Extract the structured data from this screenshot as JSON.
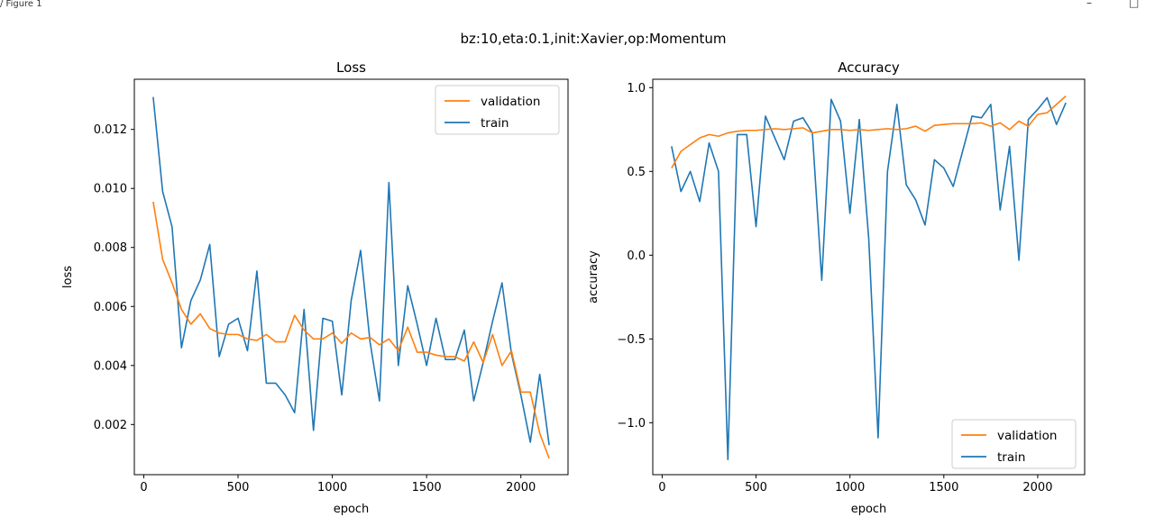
{
  "window": {
    "title": "/ Figure 1",
    "minimize_glyph": "–",
    "maximize_glyph": "□"
  },
  "figure": {
    "suptitle": "bz:10,eta:0.1,init:Xavier,op:Momentum"
  },
  "colors": {
    "validation": "#ff7f0e",
    "train": "#1f77b4"
  },
  "chart_data": [
    {
      "type": "line",
      "title": "Loss",
      "xlabel": "epoch",
      "ylabel": "loss",
      "xlim": [
        -50,
        2250
      ],
      "ylim": [
        0.0003,
        0.0137
      ],
      "xticks": [
        0,
        500,
        1000,
        1500,
        2000
      ],
      "xtick_labels": [
        "0",
        "500",
        "1000",
        "1500",
        "2000"
      ],
      "yticks": [
        0.002,
        0.004,
        0.006,
        0.008,
        0.01,
        0.012
      ],
      "ytick_labels": [
        "0.002",
        "0.004",
        "0.006",
        "0.008",
        "0.010",
        "0.012"
      ],
      "legend_position": "upper right",
      "grid": false,
      "x": [
        50,
        100,
        150,
        200,
        250,
        300,
        350,
        400,
        450,
        500,
        550,
        600,
        650,
        700,
        750,
        800,
        850,
        900,
        950,
        1000,
        1050,
        1100,
        1150,
        1200,
        1250,
        1300,
        1350,
        1400,
        1450,
        1500,
        1550,
        1600,
        1650,
        1700,
        1750,
        1800,
        1850,
        1900,
        1950,
        2000,
        2050,
        2100,
        2150
      ],
      "series": [
        {
          "name": "validation",
          "values": [
            0.00955,
            0.0076,
            0.0068,
            0.0059,
            0.0054,
            0.00575,
            0.00525,
            0.0051,
            0.00505,
            0.00505,
            0.0049,
            0.00485,
            0.00505,
            0.0048,
            0.0048,
            0.0057,
            0.0052,
            0.0049,
            0.0049,
            0.0051,
            0.00475,
            0.0051,
            0.0049,
            0.00495,
            0.0047,
            0.0049,
            0.0045,
            0.0053,
            0.00445,
            0.00445,
            0.00435,
            0.0043,
            0.0043,
            0.00415,
            0.0048,
            0.0041,
            0.00505,
            0.004,
            0.0045,
            0.0031,
            0.0031,
            0.0017,
            0.00085
          ]
        },
        {
          "name": "train",
          "values": [
            0.0131,
            0.0099,
            0.0087,
            0.0046,
            0.0062,
            0.0069,
            0.0081,
            0.0043,
            0.0054,
            0.0056,
            0.0045,
            0.0072,
            0.0034,
            0.0034,
            0.003,
            0.0024,
            0.0059,
            0.0018,
            0.0056,
            0.0055,
            0.003,
            0.0062,
            0.0079,
            0.0048,
            0.0028,
            0.0102,
            0.004,
            0.0067,
            0.0054,
            0.004,
            0.0056,
            0.0042,
            0.0042,
            0.0052,
            0.0028,
            0.0041,
            0.0055,
            0.0068,
            0.0044,
            0.003,
            0.0014,
            0.0037,
            0.0013
          ]
        }
      ]
    },
    {
      "type": "line",
      "title": "Accuracy",
      "xlabel": "epoch",
      "ylabel": "accuracy",
      "xlim": [
        -50,
        2250
      ],
      "ylim": [
        -1.31,
        1.05
      ],
      "xticks": [
        0,
        500,
        1000,
        1500,
        2000
      ],
      "xtick_labels": [
        "0",
        "500",
        "1000",
        "1500",
        "2000"
      ],
      "yticks": [
        -1.0,
        -0.5,
        0.0,
        0.5,
        1.0
      ],
      "ytick_labels": [
        "−1.0",
        "−0.5",
        "0.0",
        "0.5",
        "1.0"
      ],
      "legend_position": "lower right",
      "grid": false,
      "x": [
        50,
        100,
        150,
        200,
        250,
        300,
        350,
        400,
        450,
        500,
        550,
        600,
        650,
        700,
        750,
        800,
        850,
        900,
        950,
        1000,
        1050,
        1100,
        1150,
        1200,
        1250,
        1300,
        1350,
        1400,
        1450,
        1500,
        1550,
        1600,
        1650,
        1700,
        1750,
        1800,
        1850,
        1900,
        1950,
        2000,
        2050,
        2100,
        2150
      ],
      "series": [
        {
          "name": "validation",
          "values": [
            0.52,
            0.62,
            0.66,
            0.7,
            0.72,
            0.71,
            0.73,
            0.74,
            0.745,
            0.745,
            0.75,
            0.755,
            0.75,
            0.755,
            0.76,
            0.73,
            0.74,
            0.75,
            0.75,
            0.745,
            0.75,
            0.745,
            0.75,
            0.755,
            0.75,
            0.755,
            0.77,
            0.74,
            0.775,
            0.78,
            0.785,
            0.785,
            0.785,
            0.79,
            0.77,
            0.79,
            0.75,
            0.8,
            0.77,
            0.84,
            0.85,
            0.9,
            0.95
          ]
        },
        {
          "name": "train",
          "values": [
            0.65,
            0.38,
            0.5,
            0.32,
            0.67,
            0.5,
            -1.22,
            0.72,
            0.72,
            0.17,
            0.83,
            0.7,
            0.57,
            0.8,
            0.82,
            0.73,
            -0.15,
            0.93,
            0.8,
            0.25,
            0.81,
            0.1,
            -1.09,
            0.5,
            0.9,
            0.42,
            0.33,
            0.18,
            0.57,
            0.52,
            0.41,
            0.62,
            0.83,
            0.82,
            0.9,
            0.27,
            0.65,
            -0.03,
            0.81,
            0.87,
            0.94,
            0.78,
            0.91
          ]
        }
      ]
    }
  ]
}
